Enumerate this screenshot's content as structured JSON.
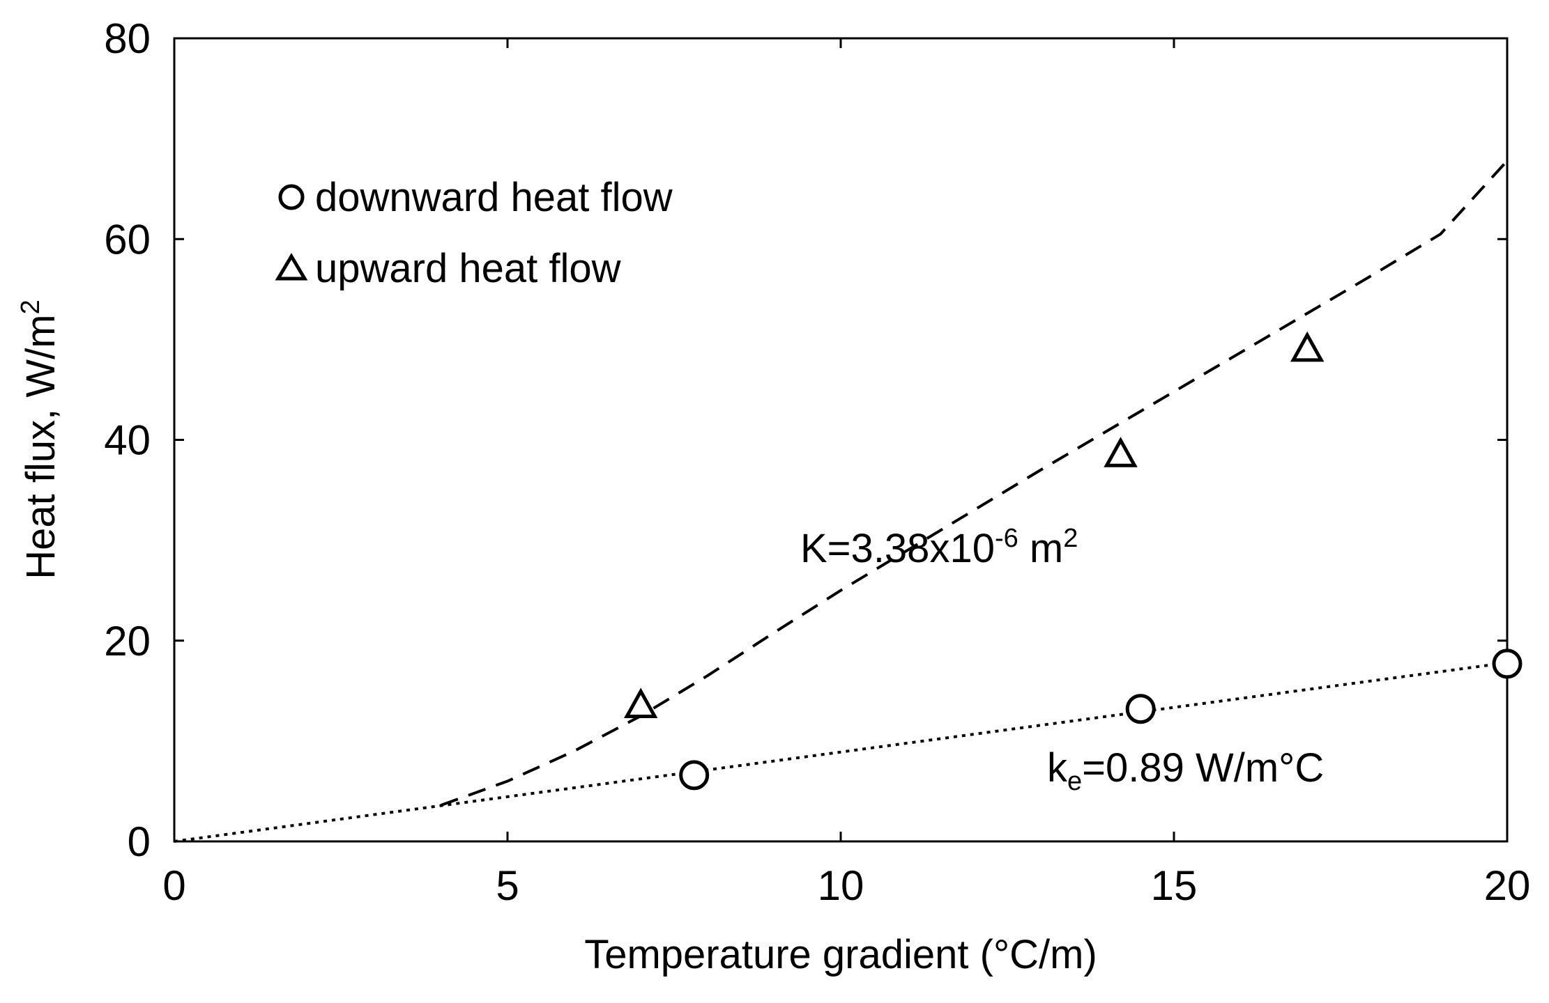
{
  "chart_data": {
    "type": "scatter",
    "title": "",
    "xlabel": "Temperature gradient (°C/m)",
    "ylabel": "Heat flux, W/m",
    "ylabel_sup": "2",
    "xlim": [
      0,
      20
    ],
    "ylim": [
      0,
      80
    ],
    "xticks": [
      0,
      5,
      10,
      15,
      20
    ],
    "yticks": [
      0,
      20,
      40,
      60,
      80
    ],
    "xtick_labels": [
      "0",
      "5",
      "10",
      "15",
      "20"
    ],
    "ytick_labels": [
      "0",
      "20",
      "40",
      "60",
      "80"
    ],
    "grid": false,
    "legend_position": "top-left",
    "series": [
      {
        "name": "downward heat flow",
        "marker": "circle",
        "points": [
          [
            7.8,
            6.6
          ],
          [
            14.5,
            13.2
          ],
          [
            20.0,
            17.7
          ]
        ]
      },
      {
        "name": "upward heat flow",
        "marker": "triangle",
        "points": [
          [
            7.0,
            13.7
          ],
          [
            14.2,
            38.7
          ],
          [
            17.0,
            49.2
          ]
        ]
      }
    ],
    "fit_lines": [
      {
        "name": "ke fit",
        "style": "dotted",
        "points": [
          [
            0,
            0
          ],
          [
            20,
            17.8
          ]
        ]
      },
      {
        "name": "K fit",
        "style": "dashed",
        "points": [
          [
            4,
            3.6
          ],
          [
            5,
            6.0
          ],
          [
            6,
            9.0
          ],
          [
            7,
            12.5
          ],
          [
            8,
            16.5
          ],
          [
            9,
            20.8
          ],
          [
            10,
            25.0
          ],
          [
            11,
            29.0
          ],
          [
            12,
            33.0
          ],
          [
            13,
            37.0
          ],
          [
            14,
            40.9
          ],
          [
            15,
            44.8
          ],
          [
            16,
            48.7
          ],
          [
            17,
            52.6
          ],
          [
            18,
            56.5
          ],
          [
            19,
            60.5
          ],
          [
            20,
            67.8
          ]
        ]
      }
    ],
    "annotations": {
      "permeability": {
        "prefix": "K=3.38x10",
        "exp": "-6",
        "mid": " m",
        "unit_exp": "2"
      },
      "conductivity": {
        "prefix": "k",
        "sub": "e",
        "suffix": "=0.89 W/m°C"
      }
    }
  }
}
